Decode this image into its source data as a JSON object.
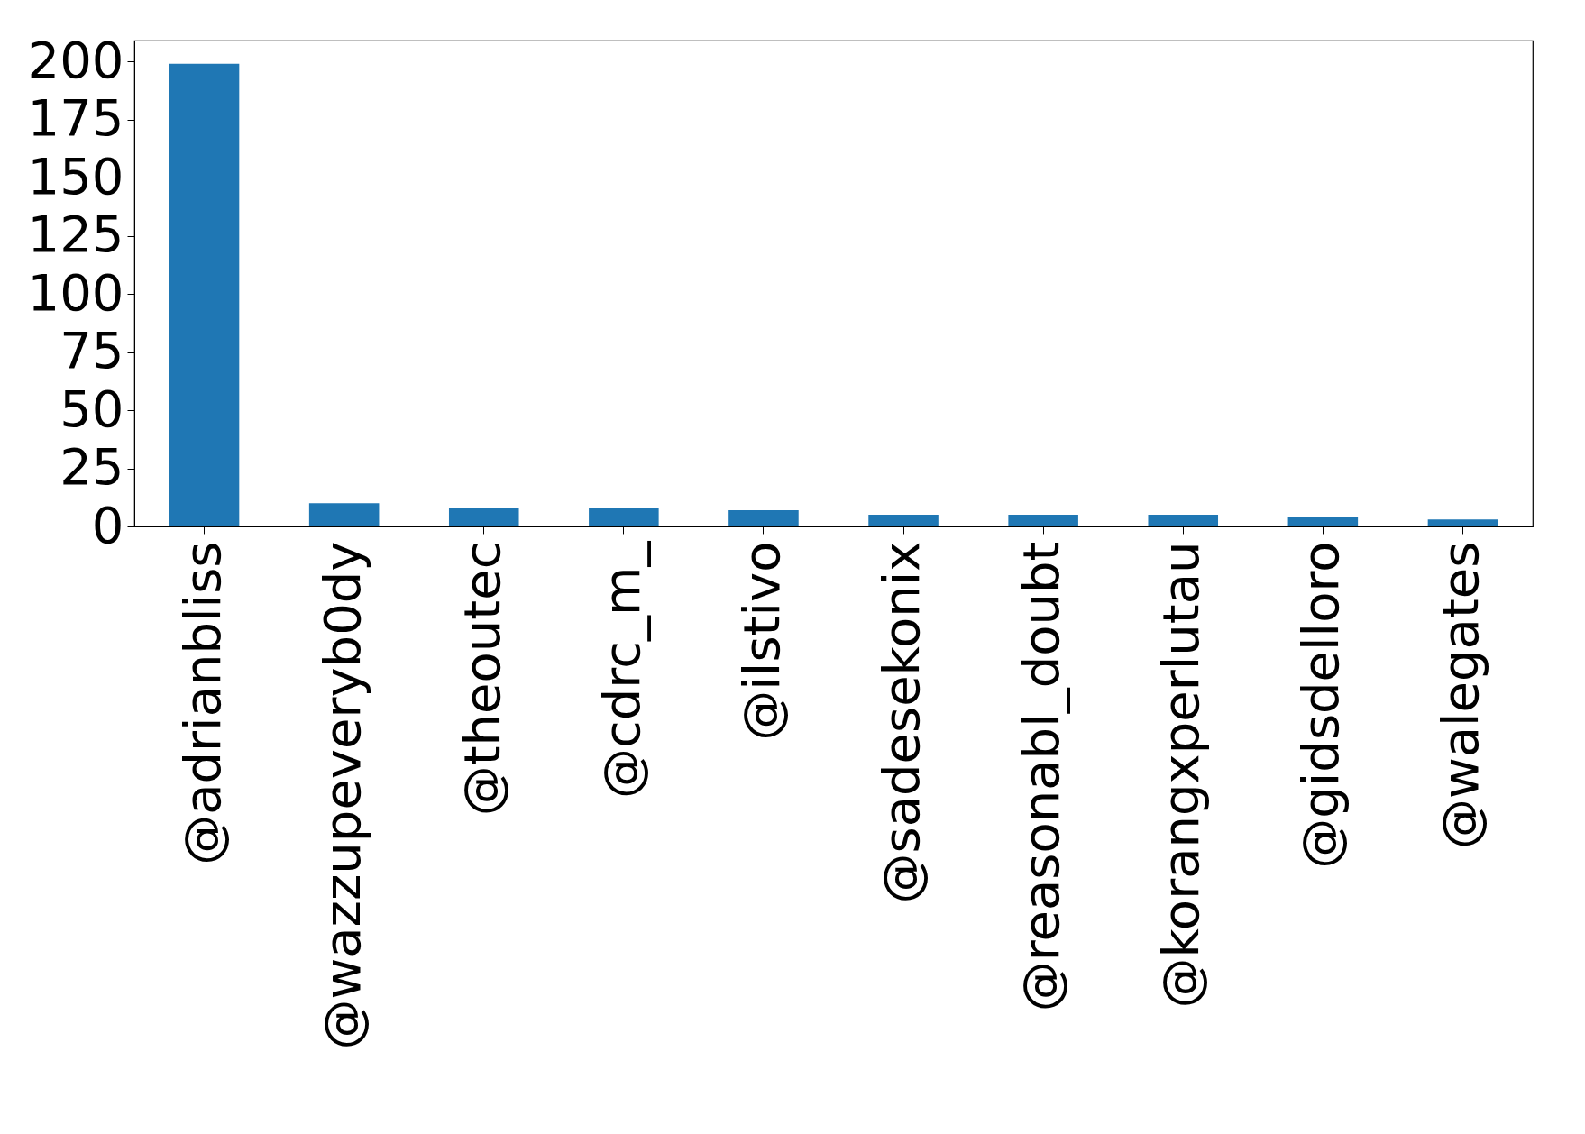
{
  "chart_data": {
    "type": "bar",
    "categories": [
      "@adrianbliss",
      "@wazzupeveryb0dy",
      "@theoutec",
      "@cdrc_m_",
      "@ilstivo",
      "@sadesekonix",
      "@reasonabl_doubt",
      "@korangxperlutau",
      "@gidsdelloro",
      "@walegates"
    ],
    "values": [
      199,
      10,
      8,
      8,
      7,
      5,
      5,
      5,
      4,
      3
    ],
    "color": "#1f77b4",
    "ylim": [
      0,
      208.95
    ],
    "yticks": [
      0,
      25,
      50,
      75,
      100,
      125,
      150,
      175,
      200
    ],
    "grid": false
  }
}
